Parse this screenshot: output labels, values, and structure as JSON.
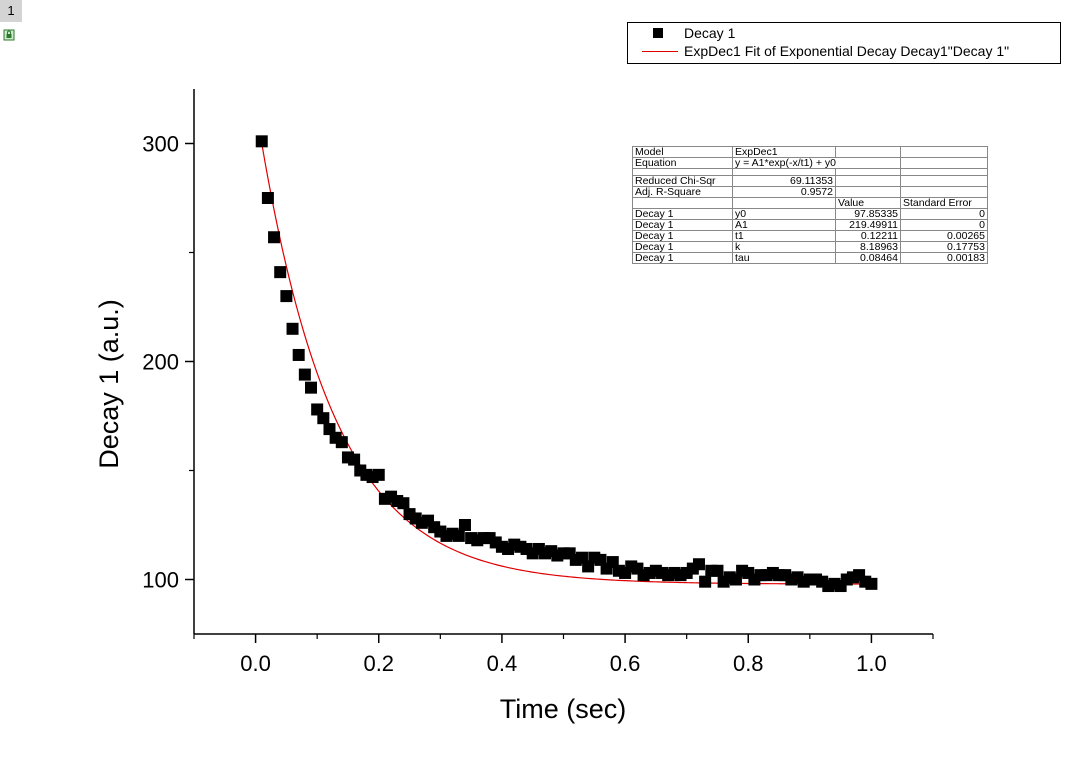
{
  "page": {
    "tab_label": "1"
  },
  "legend": {
    "items": [
      {
        "label": "Decay 1",
        "symbol": "square",
        "color": "#000000"
      },
      {
        "label": "ExpDec1 Fit of Exponential Decay Decay1\"Decay 1\"",
        "symbol": "line",
        "color": "#e00000"
      }
    ]
  },
  "fit_table": {
    "model_label": "Model",
    "model_value": "ExpDec1",
    "equation_label": "Equation",
    "equation_value": "y = A1*exp(-x/t1) + y0",
    "chisqr_label": "Reduced Chi-Sqr",
    "chisqr_value": "69.11353",
    "r2_label": "Adj. R-Square",
    "r2_value": "0.9572",
    "header_value": "Value",
    "header_error": "Standard Error",
    "rows": [
      {
        "dataset": "Decay 1",
        "param": "y0",
        "value": "97.85335",
        "error": "0"
      },
      {
        "dataset": "Decay 1",
        "param": "A1",
        "value": "219.49911",
        "error": "0"
      },
      {
        "dataset": "Decay 1",
        "param": "t1",
        "value": "0.12211",
        "error": "0.00265"
      },
      {
        "dataset": "Decay 1",
        "param": "k",
        "value": "8.18963",
        "error": "0.17753"
      },
      {
        "dataset": "Decay 1",
        "param": "tau",
        "value": "0.08464",
        "error": "0.00183"
      }
    ]
  },
  "chart_data": {
    "type": "scatter",
    "title": "",
    "xlabel": "Time (sec)",
    "ylabel": "Decay 1 (a.u.)",
    "xlim": [
      -0.1,
      1.1
    ],
    "ylim": [
      75,
      325
    ],
    "xticks": [
      0.0,
      0.2,
      0.4,
      0.6,
      0.8,
      1.0
    ],
    "xtick_labels": [
      "0.0",
      "0.2",
      "0.4",
      "0.6",
      "0.8",
      "1.0"
    ],
    "yticks": [
      100,
      200,
      300
    ],
    "ytick_labels": [
      "100",
      "200",
      "300"
    ],
    "x_minor_step": 0.1,
    "y_minor_step": 50,
    "series": [
      {
        "name": "Decay 1",
        "kind": "scatter",
        "marker": "square",
        "color": "#000000",
        "x": [
          0.01,
          0.02,
          0.03,
          0.04,
          0.05,
          0.06,
          0.07,
          0.08,
          0.09,
          0.1,
          0.11,
          0.12,
          0.13,
          0.14,
          0.15,
          0.16,
          0.17,
          0.18,
          0.19,
          0.2,
          0.21,
          0.22,
          0.23,
          0.24,
          0.25,
          0.26,
          0.27,
          0.28,
          0.29,
          0.3,
          0.31,
          0.32,
          0.33,
          0.34,
          0.35,
          0.36,
          0.37,
          0.38,
          0.39,
          0.4,
          0.41,
          0.42,
          0.43,
          0.44,
          0.45,
          0.46,
          0.47,
          0.48,
          0.49,
          0.5,
          0.51,
          0.52,
          0.53,
          0.54,
          0.55,
          0.56,
          0.57,
          0.58,
          0.59,
          0.6,
          0.61,
          0.62,
          0.63,
          0.64,
          0.65,
          0.66,
          0.67,
          0.68,
          0.69,
          0.7,
          0.71,
          0.72,
          0.73,
          0.74,
          0.75,
          0.76,
          0.77,
          0.78,
          0.79,
          0.8,
          0.81,
          0.82,
          0.83,
          0.84,
          0.85,
          0.86,
          0.87,
          0.88,
          0.89,
          0.9,
          0.91,
          0.92,
          0.93,
          0.94,
          0.95,
          0.96,
          0.97,
          0.98,
          0.99,
          1.0
        ],
        "y": [
          301,
          275,
          257,
          241,
          230,
          215,
          203,
          194,
          188,
          178,
          174,
          169,
          165,
          163,
          156,
          155,
          150,
          148,
          147,
          148,
          137,
          138,
          136,
          135,
          130,
          128,
          126,
          127,
          124,
          122,
          120,
          121,
          120,
          125,
          119,
          118,
          119,
          119,
          117,
          115,
          114,
          116,
          115,
          114,
          112,
          114,
          112,
          113,
          111,
          112,
          112,
          109,
          110,
          106,
          110,
          109,
          105,
          108,
          104,
          103,
          106,
          105,
          102,
          103,
          104,
          103,
          102,
          103,
          102,
          103,
          105,
          107,
          99,
          104,
          104,
          99,
          101,
          100,
          104,
          103,
          100,
          102,
          102,
          103,
          102,
          102,
          100,
          101,
          99,
          100,
          100,
          99,
          97,
          98,
          97,
          100,
          101,
          102,
          99,
          98
        ]
      },
      {
        "name": "ExpDec1 Fit of Exponential Decay Decay1\"Decay 1\"",
        "kind": "line",
        "color": "#e00000",
        "y0": 97.85335,
        "A1": 219.49911,
        "t1": 0.12211,
        "x_range": [
          0.01,
          1.0
        ]
      }
    ]
  }
}
